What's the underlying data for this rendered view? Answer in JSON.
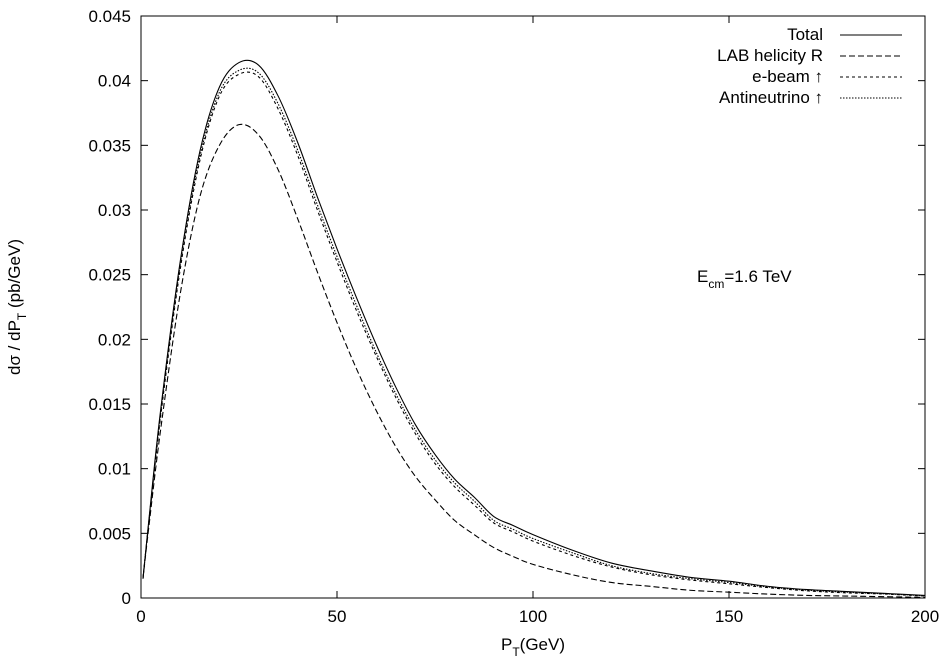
{
  "chart_data": {
    "type": "line",
    "title": "",
    "xlabel": {
      "main": "P",
      "sub": "T",
      "rest": "(GeV)"
    },
    "ylabel": {
      "main": "dσ / dP",
      "sub": "T",
      "rest": " (pb/GeV)"
    },
    "xlim": [
      0,
      200
    ],
    "ylim": [
      0,
      0.045
    ],
    "xticks": [
      0,
      50,
      100,
      150,
      200
    ],
    "xtick_labels": [
      "0",
      "50",
      "100",
      "150",
      "200"
    ],
    "yticks": [
      0,
      0.005,
      0.01,
      0.015,
      0.02,
      0.025,
      0.03,
      0.035,
      0.04,
      0.045
    ],
    "ytick_labels": [
      "0",
      "0.005",
      "0.01",
      "0.015",
      "0.02",
      "0.025",
      "0.03",
      "0.035",
      "0.04",
      "0.045"
    ],
    "grid": false,
    "legend_position": "top-right",
    "annotation": {
      "main": "E",
      "sub": "cm",
      "rest": "=1.6  TeV"
    },
    "x": [
      0.5,
      2,
      5,
      10,
      15,
      20,
      25,
      30,
      35,
      40,
      45,
      50,
      55,
      60,
      65,
      70,
      75,
      80,
      85,
      90,
      95,
      100,
      110,
      120,
      130,
      140,
      150,
      160,
      170,
      180,
      190,
      200
    ],
    "series": [
      {
        "name": "Total",
        "dash": "solid",
        "values": [
          0.0015,
          0.006,
          0.0145,
          0.026,
          0.0345,
          0.0395,
          0.0414,
          0.0412,
          0.0388,
          0.0352,
          0.031,
          0.027,
          0.0232,
          0.0196,
          0.0163,
          0.0134,
          0.0111,
          0.0092,
          0.0078,
          0.0063,
          0.0056,
          0.0049,
          0.0037,
          0.0027,
          0.0021,
          0.0016,
          0.0013,
          0.0009,
          0.00065,
          0.0005,
          0.00035,
          0.0002
        ]
      },
      {
        "name": "LAB  helicity R",
        "dash": "dashed",
        "values": [
          0.0015,
          0.0055,
          0.013,
          0.0235,
          0.031,
          0.035,
          0.0366,
          0.0358,
          0.0331,
          0.0293,
          0.0252,
          0.0213,
          0.0177,
          0.0145,
          0.0117,
          0.0094,
          0.0076,
          0.006,
          0.0049,
          0.0039,
          0.0032,
          0.0026,
          0.0018,
          0.0012,
          0.0009,
          0.0006,
          0.00045,
          0.0003,
          0.0002,
          0.00015,
          0.0001,
          5e-05
        ]
      },
      {
        "name": "e-beam",
        "arrow": "↑",
        "dash": "dotted",
        "values": [
          0.0015,
          0.0058,
          0.014,
          0.0254,
          0.0338,
          0.0388,
          0.0405,
          0.0403,
          0.0378,
          0.0342,
          0.03,
          0.026,
          0.0222,
          0.0187,
          0.0155,
          0.0127,
          0.0104,
          0.0086,
          0.0072,
          0.0058,
          0.0051,
          0.0044,
          0.0033,
          0.0024,
          0.0018,
          0.0014,
          0.0011,
          0.0008,
          0.00055,
          0.0004,
          0.0003,
          0.00015
        ]
      },
      {
        "name": "Antineutrino",
        "arrow": "↑",
        "dash": "dense-dotted",
        "values": [
          0.0015,
          0.0059,
          0.0142,
          0.0257,
          0.0341,
          0.0391,
          0.0408,
          0.0406,
          0.0382,
          0.0346,
          0.0304,
          0.0264,
          0.0226,
          0.019,
          0.0158,
          0.013,
          0.0107,
          0.0089,
          0.0075,
          0.006,
          0.0053,
          0.0046,
          0.0035,
          0.0025,
          0.0019,
          0.0015,
          0.0012,
          0.00085,
          0.0006,
          0.00045,
          0.00032,
          0.00018
        ]
      }
    ]
  }
}
